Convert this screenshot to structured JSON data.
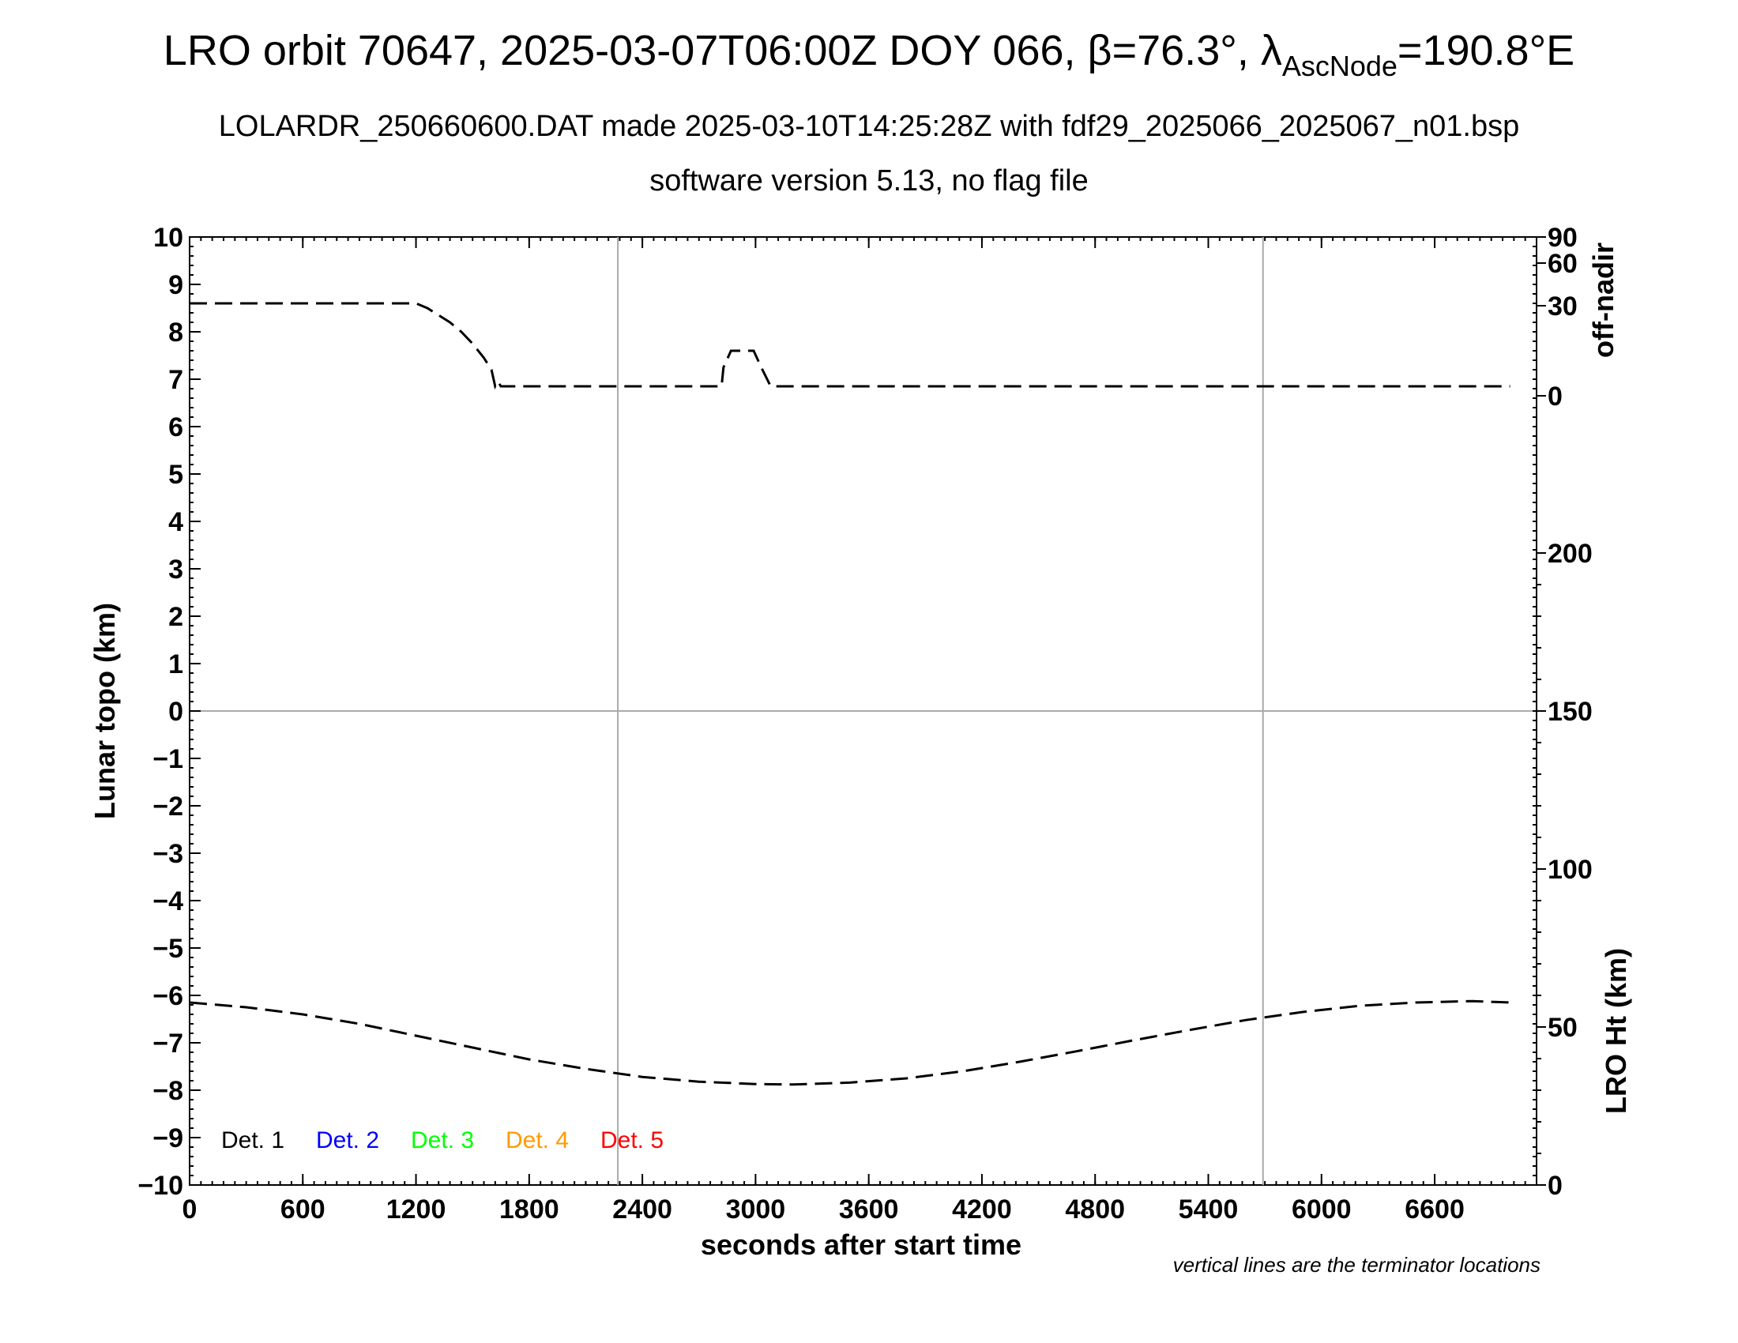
{
  "header": {
    "title_main": "LRO orbit 70647, 2025-03-07T06:00Z DOY 066, β=76.3°, λ",
    "title_sub": "AscNode",
    "title_end": "=190.8°E",
    "line2": "LOLARDR_250660600.DAT made 2025-03-10T14:25:28Z with fdf29_2025066_2025067_n01.bsp",
    "line3": "software version 5.13, no flag file"
  },
  "footer_note": "vertical lines are the terminator locations",
  "chart_data": {
    "type": "line",
    "xlabel": "seconds after start time",
    "ylabel": "Lunar topo (km)",
    "xlim": [
      0,
      7140
    ],
    "ylim": [
      -10,
      10
    ],
    "x_ticks": [
      0,
      600,
      1200,
      1800,
      2400,
      3000,
      3600,
      4200,
      4800,
      5400,
      6000,
      6600
    ],
    "y_ticks": [
      10,
      9,
      8,
      7,
      6,
      5,
      4,
      3,
      2,
      1,
      0,
      -1,
      -2,
      -3,
      -4,
      -5,
      -6,
      -7,
      -8,
      -9,
      -10
    ],
    "terminator_lines_x": [
      2270,
      5690
    ],
    "grid": "terminator lines and zero line only",
    "right_axis_offnadir": {
      "label": "off-nadir",
      "ticks": [
        90,
        60,
        30,
        0
      ],
      "ticks_in_topo_units": [
        10,
        9.45,
        8.55,
        6.65
      ]
    },
    "right_axis_lroht": {
      "label": "LRO Ht (km)",
      "ticks": [
        200,
        150,
        100,
        50,
        0
      ],
      "range": [
        0,
        300
      ]
    },
    "legend": [
      {
        "label": "Det. 1",
        "color": "#000000"
      },
      {
        "label": "Det. 2",
        "color": "#0000ff"
      },
      {
        "label": "Det. 3",
        "color": "#00ff00"
      },
      {
        "label": "Det. 4",
        "color": "#ff9900"
      },
      {
        "label": "Det. 5",
        "color": "#ff0000"
      }
    ],
    "series": [
      {
        "axis": "off-nadir",
        "color": "#000000",
        "points": [
          [
            0,
            8.6
          ],
          [
            1200,
            8.6
          ],
          [
            1260,
            8.5
          ],
          [
            1320,
            8.35
          ],
          [
            1380,
            8.2
          ],
          [
            1440,
            8.0
          ],
          [
            1500,
            7.75
          ],
          [
            1560,
            7.45
          ],
          [
            1600,
            7.2
          ],
          [
            1620,
            6.85
          ],
          [
            1635,
            6.95
          ],
          [
            1650,
            6.85
          ],
          [
            2000,
            6.85
          ],
          [
            2400,
            6.85
          ],
          [
            2820,
            6.85
          ],
          [
            2830,
            7.25
          ],
          [
            2870,
            7.6
          ],
          [
            2990,
            7.6
          ],
          [
            3030,
            7.25
          ],
          [
            3080,
            6.85
          ],
          [
            3120,
            6.85
          ],
          [
            3600,
            6.85
          ],
          [
            4800,
            6.85
          ],
          [
            6000,
            6.85
          ],
          [
            7000,
            6.85
          ]
        ]
      },
      {
        "axis": "LRO Ht",
        "color": "#000000",
        "points": [
          [
            0,
            -6.15
          ],
          [
            300,
            -6.25
          ],
          [
            600,
            -6.4
          ],
          [
            900,
            -6.6
          ],
          [
            1200,
            -6.85
          ],
          [
            1500,
            -7.1
          ],
          [
            1800,
            -7.35
          ],
          [
            2100,
            -7.55
          ],
          [
            2400,
            -7.72
          ],
          [
            2700,
            -7.82
          ],
          [
            3000,
            -7.87
          ],
          [
            3200,
            -7.88
          ],
          [
            3500,
            -7.84
          ],
          [
            3800,
            -7.75
          ],
          [
            4100,
            -7.6
          ],
          [
            4400,
            -7.4
          ],
          [
            4700,
            -7.18
          ],
          [
            5000,
            -6.95
          ],
          [
            5300,
            -6.73
          ],
          [
            5600,
            -6.52
          ],
          [
            5900,
            -6.35
          ],
          [
            6200,
            -6.22
          ],
          [
            6500,
            -6.15
          ],
          [
            6800,
            -6.12
          ],
          [
            7000,
            -6.15
          ]
        ]
      }
    ]
  }
}
